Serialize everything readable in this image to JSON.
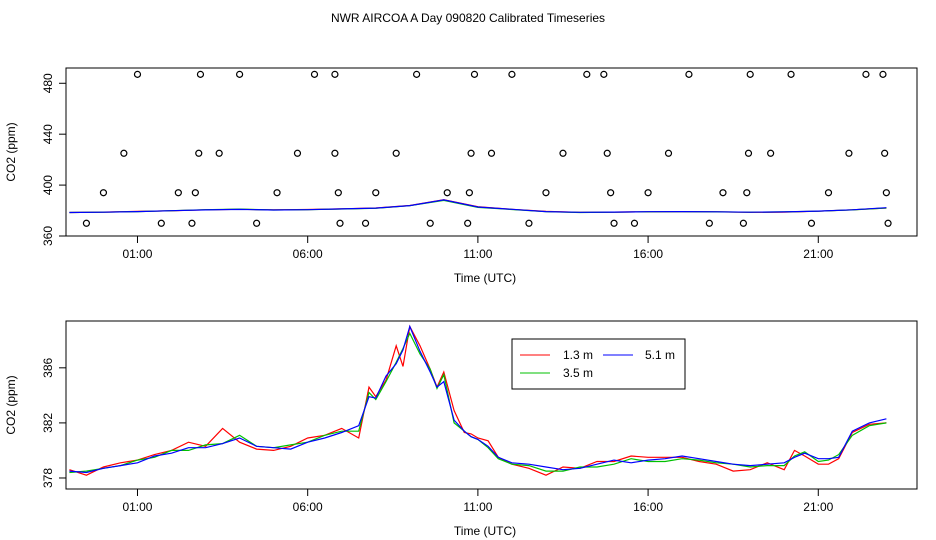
{
  "chart_data": [
    {
      "type": "scatter+line",
      "title": "NWR AIRCOA A  Day 090820  Calibrated Timeseries",
      "xlabel": "Time (UTC)",
      "ylabel": "CO2 (ppm)",
      "xlim_hours": [
        -1.1,
        23.9
      ],
      "ylim": [
        360,
        492
      ],
      "x_ticks": [
        {
          "v": 1,
          "label": "01:00"
        },
        {
          "v": 6,
          "label": "06:00"
        },
        {
          "v": 11,
          "label": "11:00"
        },
        {
          "v": 16,
          "label": "16:00"
        },
        {
          "v": 21,
          "label": "21:00"
        }
      ],
      "y_ticks": [
        {
          "v": 360,
          "label": "360"
        },
        {
          "v": 400,
          "label": "400"
        },
        {
          "v": 440,
          "label": "440"
        },
        {
          "v": 480,
          "label": "480"
        }
      ],
      "markers_circle": [
        [
          -0.5,
          370
        ],
        [
          0.0,
          394
        ],
        [
          0.6,
          425
        ],
        [
          1.0,
          487
        ],
        [
          1.7,
          370
        ],
        [
          2.2,
          394
        ],
        [
          2.6,
          370
        ],
        [
          2.7,
          394
        ],
        [
          2.8,
          425
        ],
        [
          2.85,
          487
        ],
        [
          3.4,
          425
        ],
        [
          4.0,
          487
        ],
        [
          4.5,
          370
        ],
        [
          5.1,
          394
        ],
        [
          5.7,
          425
        ],
        [
          6.2,
          487
        ],
        [
          6.8,
          487
        ],
        [
          6.8,
          425
        ],
        [
          6.9,
          394
        ],
        [
          6.95,
          370
        ],
        [
          7.7,
          370
        ],
        [
          8.0,
          394
        ],
        [
          8.6,
          425
        ],
        [
          9.2,
          487
        ],
        [
          9.6,
          370
        ],
        [
          10.1,
          394
        ],
        [
          10.7,
          370
        ],
        [
          10.75,
          394
        ],
        [
          10.8,
          425
        ],
        [
          10.9,
          487
        ],
        [
          11.4,
          425
        ],
        [
          12.0,
          487
        ],
        [
          12.5,
          370
        ],
        [
          13.0,
          394
        ],
        [
          13.5,
          425
        ],
        [
          14.2,
          487
        ],
        [
          14.7,
          487
        ],
        [
          14.8,
          425
        ],
        [
          14.9,
          394
        ],
        [
          15.0,
          370
        ],
        [
          15.6,
          370
        ],
        [
          16.0,
          394
        ],
        [
          16.6,
          425
        ],
        [
          17.2,
          487
        ],
        [
          17.8,
          370
        ],
        [
          18.2,
          394
        ],
        [
          18.8,
          370
        ],
        [
          18.9,
          394
        ],
        [
          18.95,
          425
        ],
        [
          19.0,
          487
        ],
        [
          19.6,
          425
        ],
        [
          20.2,
          487
        ],
        [
          20.8,
          370
        ],
        [
          21.3,
          394
        ],
        [
          21.9,
          425
        ],
        [
          22.4,
          487
        ],
        [
          22.9,
          487
        ],
        [
          22.95,
          425
        ],
        [
          23.0,
          394
        ],
        [
          23.05,
          370
        ]
      ],
      "series": [
        {
          "name": "1.3 m",
          "color": "#ff0000",
          "x": [
            -1,
            0,
            1,
            2,
            3,
            4,
            5,
            6,
            7,
            8,
            9,
            10,
            11,
            12,
            13,
            14,
            15,
            16,
            17,
            18,
            19,
            20,
            21,
            22,
            23
          ],
          "y": [
            378.5,
            378.8,
            379.3,
            379.8,
            380.6,
            381.0,
            380.5,
            380.8,
            381.3,
            382.0,
            384.0,
            388.5,
            383.0,
            381.0,
            379.3,
            378.6,
            378.8,
            379.0,
            379.2,
            379.0,
            378.6,
            378.8,
            379.5,
            380.6,
            382.0
          ]
        },
        {
          "name": "3.5 m",
          "color": "#00c000",
          "x": [
            -1,
            0,
            1,
            2,
            3,
            4,
            5,
            6,
            7,
            8,
            9,
            10,
            11,
            12,
            13,
            14,
            15,
            16,
            17,
            18,
            19,
            20,
            21,
            22,
            23
          ],
          "y": [
            378.5,
            378.7,
            379.2,
            379.9,
            380.7,
            381.1,
            380.4,
            380.7,
            381.2,
            381.8,
            383.8,
            388.0,
            382.5,
            380.8,
            379.1,
            378.5,
            378.7,
            379.0,
            379.1,
            378.9,
            378.7,
            378.9,
            379.5,
            380.5,
            382.0
          ]
        },
        {
          "name": "5.1 m",
          "color": "#0000ff",
          "x": [
            -1,
            0,
            1,
            2,
            3,
            4,
            5,
            6,
            7,
            8,
            9,
            10,
            11,
            12,
            13,
            14,
            15,
            16,
            17,
            18,
            19,
            20,
            21,
            22,
            23
          ],
          "y": [
            378.5,
            378.7,
            379.2,
            379.9,
            380.5,
            380.9,
            380.4,
            380.7,
            381.3,
            381.9,
            383.9,
            388.4,
            382.8,
            381.0,
            379.2,
            378.6,
            378.8,
            379.1,
            379.2,
            379.0,
            378.7,
            378.9,
            379.6,
            380.6,
            382.2
          ]
        }
      ]
    },
    {
      "type": "line",
      "title": "",
      "xlabel": "Time (UTC)",
      "ylabel": "CO2 (ppm)",
      "xlim_hours": [
        -1.1,
        23.9
      ],
      "ylim": [
        377.2,
        389.4
      ],
      "x_ticks": [
        {
          "v": 1,
          "label": "01:00"
        },
        {
          "v": 6,
          "label": "06:00"
        },
        {
          "v": 11,
          "label": "11:00"
        },
        {
          "v": 16,
          "label": "16:00"
        },
        {
          "v": 21,
          "label": "21:00"
        }
      ],
      "y_ticks": [
        {
          "v": 378,
          "label": "378"
        },
        {
          "v": 382,
          "label": "382"
        },
        {
          "v": 386,
          "label": "386"
        }
      ],
      "legend": {
        "placement": "top-center",
        "entries": [
          "1.3 m",
          "3.5 m",
          "5.1 m"
        ]
      },
      "series": [
        {
          "name": "1.3 m",
          "color": "#ff0000",
          "x": [
            -1,
            -0.5,
            0,
            0.5,
            1,
            1.5,
            2,
            2.5,
            3,
            3.5,
            4,
            4.5,
            5,
            5.5,
            6,
            6.5,
            7,
            7.5,
            7.8,
            8,
            8.3,
            8.6,
            8.8,
            9,
            9.3,
            9.6,
            9.8,
            10,
            10.3,
            10.6,
            10.8,
            11,
            11.3,
            11.6,
            12,
            12.5,
            13,
            13.5,
            14,
            14.5,
            15,
            15.5,
            16,
            16.5,
            17,
            17.5,
            18,
            18.5,
            19,
            19.5,
            20,
            20.3,
            20.6,
            21,
            21.3,
            21.6,
            22,
            22.5,
            23
          ],
          "y": [
            378.6,
            378.2,
            378.8,
            379.1,
            379.3,
            379.7,
            380.0,
            380.6,
            380.3,
            381.6,
            380.6,
            380.1,
            380.0,
            380.3,
            380.9,
            381.1,
            381.6,
            380.9,
            384.6,
            383.9,
            385.1,
            387.6,
            386.1,
            389.0,
            387.6,
            385.9,
            384.6,
            385.7,
            382.9,
            381.3,
            381.2,
            380.9,
            380.7,
            379.5,
            379.0,
            378.7,
            378.2,
            378.8,
            378.7,
            379.2,
            379.2,
            379.6,
            379.5,
            379.5,
            379.5,
            379.2,
            379.0,
            378.5,
            378.6,
            379.1,
            378.6,
            380.0,
            379.6,
            379.0,
            379.0,
            379.4,
            381.3,
            381.9,
            382.0
          ]
        },
        {
          "name": "3.5 m",
          "color": "#00c000",
          "x": [
            -1,
            -0.5,
            0,
            0.5,
            1,
            1.5,
            2,
            2.5,
            3,
            3.5,
            4,
            4.5,
            5,
            5.5,
            6,
            6.5,
            7,
            7.5,
            7.8,
            8,
            8.3,
            8.6,
            8.8,
            9,
            9.3,
            9.6,
            9.8,
            10,
            10.3,
            10.6,
            10.8,
            11,
            11.3,
            11.6,
            12,
            12.5,
            13,
            13.5,
            14,
            14.5,
            15,
            15.5,
            16,
            16.5,
            17,
            17.5,
            18,
            18.5,
            19,
            19.5,
            20,
            20.3,
            20.6,
            21,
            21.3,
            21.6,
            22,
            22.5,
            23
          ],
          "y": [
            378.4,
            378.5,
            378.7,
            378.9,
            379.3,
            379.5,
            380.0,
            380.0,
            380.4,
            380.5,
            381.1,
            380.3,
            380.2,
            380.4,
            380.6,
            381.1,
            381.4,
            381.4,
            384.2,
            383.7,
            385.0,
            386.4,
            387.4,
            388.5,
            387.0,
            385.9,
            384.5,
            385.5,
            382.0,
            381.4,
            381.0,
            380.8,
            380.2,
            379.4,
            379.0,
            378.9,
            378.5,
            378.5,
            378.8,
            378.8,
            379.0,
            379.4,
            379.2,
            379.2,
            379.4,
            379.3,
            379.1,
            379.0,
            378.8,
            378.9,
            378.9,
            379.6,
            379.9,
            379.2,
            379.3,
            379.7,
            381.1,
            381.8,
            382.0
          ]
        },
        {
          "name": "5.1 m",
          "color": "#0000ff",
          "x": [
            -1,
            -0.5,
            0,
            0.5,
            1,
            1.5,
            2,
            2.5,
            3,
            3.5,
            4,
            4.5,
            5,
            5.5,
            6,
            6.5,
            7,
            7.5,
            7.8,
            8,
            8.3,
            8.6,
            8.8,
            9,
            9.3,
            9.6,
            9.8,
            10,
            10.3,
            10.6,
            10.8,
            11,
            11.3,
            11.6,
            12,
            12.5,
            13,
            13.5,
            14,
            14.5,
            15,
            15.5,
            16,
            16.5,
            17,
            17.5,
            18,
            18.5,
            19,
            19.5,
            20,
            20.3,
            20.6,
            21,
            21.3,
            21.6,
            22,
            22.5,
            23
          ],
          "y": [
            378.5,
            378.4,
            378.7,
            378.9,
            379.1,
            379.6,
            379.8,
            380.2,
            380.2,
            380.5,
            380.9,
            380.3,
            380.2,
            380.1,
            380.6,
            380.9,
            381.3,
            381.8,
            383.9,
            383.8,
            385.4,
            386.3,
            387.3,
            389.0,
            387.2,
            385.7,
            384.6,
            385.0,
            382.2,
            381.4,
            381.0,
            380.8,
            380.3,
            379.5,
            379.1,
            379.0,
            378.8,
            378.6,
            378.7,
            379.0,
            379.3,
            379.1,
            379.3,
            379.4,
            379.6,
            379.4,
            379.2,
            379.0,
            378.9,
            379.0,
            379.1,
            379.5,
            379.8,
            379.4,
            379.4,
            379.5,
            381.4,
            382.0,
            382.3
          ]
        }
      ]
    }
  ]
}
